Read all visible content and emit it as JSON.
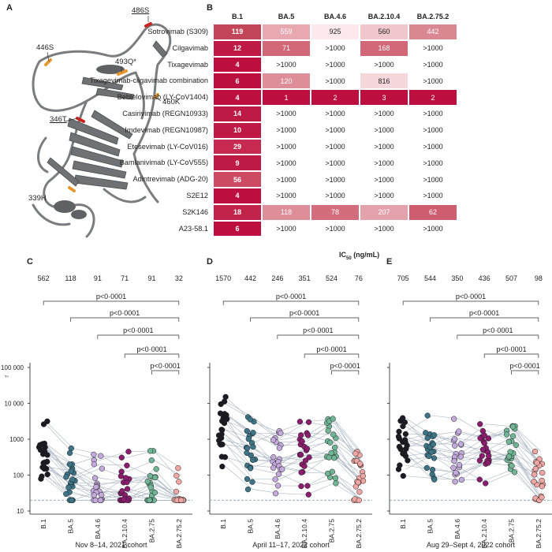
{
  "panels": {
    "a": "A",
    "b": "B",
    "c": "C",
    "d": "D",
    "e": "E"
  },
  "structure": {
    "labels": [
      {
        "text": "486S",
        "underline": true
      },
      {
        "text": "446S",
        "underline": false
      },
      {
        "text": "493Q*",
        "underline": false
      },
      {
        "text": "460K",
        "underline": false
      },
      {
        "text": "346T",
        "underline": true
      },
      {
        "text": "339H",
        "underline": false
      }
    ],
    "colors": {
      "ribbon": "#7a7d80",
      "highlight_orange": "#e8972f",
      "highlight_red": "#c8231e"
    }
  },
  "heatmap": {
    "columns": [
      "B.1",
      "BA.5",
      "BA.4.6",
      "BA.2.10.4",
      "BA.2.75.2"
    ],
    "rows": [
      {
        "name": "Sotrovimab (S309)",
        "values": [
          "119",
          "559",
          "925",
          "560",
          "442"
        ],
        "colors": [
          "#c2455a",
          "#e8a8b0",
          "#fbe9eb",
          "#f0c7cc",
          "#d98892"
        ]
      },
      {
        "name": "Cilgavimab",
        "values": [
          "12",
          "71",
          ">1000",
          "168",
          ">1000"
        ],
        "colors": [
          "#be1a45",
          "#d16777",
          "#ffffff",
          "#d16777",
          "#ffffff"
        ]
      },
      {
        "name": "Tixagevimab",
        "values": [
          "4",
          ">1000",
          ">1000",
          ">1000",
          ">1000"
        ],
        "colors": [
          "#bd0f3f",
          "#ffffff",
          "#ffffff",
          "#ffffff",
          "#ffffff"
        ]
      },
      {
        "name": "Tixagevimab-cilgavimab combination",
        "values": [
          "6",
          "120",
          ">1000",
          "816",
          ">1000"
        ],
        "colors": [
          "#bd0f3f",
          "#de8e99",
          "#ffffff",
          "#f6d8dc",
          "#ffffff"
        ]
      },
      {
        "name": "Bebtelovimab (LY-CoV1404)",
        "values": [
          "4",
          "1",
          "2",
          "3",
          "2"
        ],
        "colors": [
          "#bd0f3f",
          "#bd0f3f",
          "#bd0f3f",
          "#bd0f3f",
          "#bd0f3f"
        ]
      },
      {
        "name": "Casirivimab (REGN10933)",
        "values": [
          "14",
          ">1000",
          ">1000",
          ">1000",
          ">1000"
        ],
        "colors": [
          "#be1a45",
          "#ffffff",
          "#ffffff",
          "#ffffff",
          "#ffffff"
        ]
      },
      {
        "name": "Imdevimab (REGN10987)",
        "values": [
          "10",
          ">1000",
          ">1000",
          ">1000",
          ">1000"
        ],
        "colors": [
          "#be1a45",
          "#ffffff",
          "#ffffff",
          "#ffffff",
          "#ffffff"
        ]
      },
      {
        "name": "Etesevimab (LY-CoV016)",
        "values": [
          "29",
          ">1000",
          ">1000",
          ">1000",
          ">1000"
        ],
        "colors": [
          "#c62a50",
          "#ffffff",
          "#ffffff",
          "#ffffff",
          "#ffffff"
        ]
      },
      {
        "name": "Bamlanivimab (LY-CoV555)",
        "values": [
          "9",
          ">1000",
          ">1000",
          ">1000",
          ">1000"
        ],
        "colors": [
          "#be1a45",
          "#ffffff",
          "#ffffff",
          "#ffffff",
          "#ffffff"
        ]
      },
      {
        "name": "Adintrevimab (ADG-20)",
        "values": [
          "56",
          ">1000",
          ">1000",
          ">1000",
          ">1000"
        ],
        "colors": [
          "#cd4a63",
          "#ffffff",
          "#ffffff",
          "#ffffff",
          "#ffffff"
        ]
      },
      {
        "name": "S2E12",
        "values": [
          "4",
          ">1000",
          ">1000",
          ">1000",
          ">1000"
        ],
        "colors": [
          "#bd0f3f",
          "#ffffff",
          "#ffffff",
          "#ffffff",
          "#ffffff"
        ]
      },
      {
        "name": "S2K146",
        "values": [
          "18",
          "118",
          "78",
          "207",
          "62"
        ],
        "colors": [
          "#c2234a",
          "#de8e99",
          "#d36c7c",
          "#e4a2ac",
          "#cf5d70"
        ]
      },
      {
        "name": "A23-58.1",
        "values": [
          "6",
          ">1000",
          ">1000",
          ">1000",
          ">1000"
        ],
        "colors": [
          "#bd0f3f",
          "#ffffff",
          "#ffffff",
          "#ffffff",
          "#ffffff"
        ]
      }
    ],
    "axis_label_main": "IC",
    "axis_label_sub": "50",
    "axis_label_unit": " (ng/mL)"
  },
  "dotplots": {
    "ylabel_fragment": "₅₀",
    "yticks": [
      "100 000",
      "10 000",
      "1000",
      "100",
      "10"
    ],
    "categories": [
      "B.1",
      "BA.5",
      "BA.4.6",
      "BA.2.10.4",
      "BA.2.75",
      "BA.2.75.2"
    ],
    "category_colors": [
      "#1c1a22",
      "#3d7587",
      "#c4a9dc",
      "#8a1d6e",
      "#70b596",
      "#f0a7a3"
    ],
    "pvalue_label": "p<0·0001",
    "panels": [
      {
        "key": "C",
        "cohort": "Nov 8–14, 2021 cohort",
        "gmt": [
          "562",
          "118",
          "91",
          "71",
          "91",
          "32"
        ]
      },
      {
        "key": "D",
        "cohort": "April 11–17, 2022 cohort",
        "gmt": [
          "1570",
          "442",
          "246",
          "351",
          "524",
          "76"
        ]
      },
      {
        "key": "E",
        "cohort": "Aug 29–Sept 4, 2022 cohort",
        "gmt": [
          "705",
          "544",
          "350",
          "436",
          "507",
          "98"
        ]
      }
    ]
  }
}
